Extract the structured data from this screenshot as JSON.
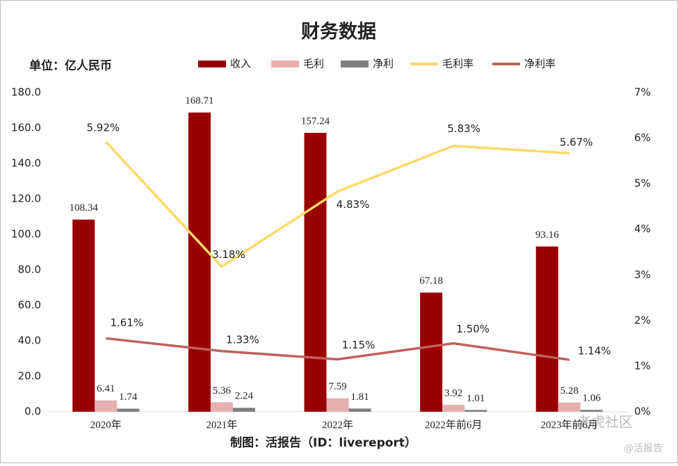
{
  "chart_data": {
    "type": "bar",
    "title": "财务数据",
    "unit_label": "单位：亿人民币",
    "source": "制图：活报告（ID：livereport）",
    "watermark": [
      "老虎社区",
      "@活报告"
    ],
    "categories": [
      "2020年",
      "2021年",
      "2022年",
      "2022年前6月",
      "2023年前6月"
    ],
    "series": [
      {
        "name": "收入",
        "type": "bar",
        "color": "#990000",
        "values": [
          108.34,
          168.71,
          157.24,
          67.18,
          93.16
        ]
      },
      {
        "name": "毛利",
        "type": "bar",
        "color": "#e6b0b0",
        "values": [
          6.41,
          5.36,
          7.59,
          3.92,
          5.28
        ]
      },
      {
        "name": "净利",
        "type": "bar",
        "color": "#7f7f7f",
        "values": [
          1.74,
          2.24,
          1.81,
          1.01,
          1.06
        ]
      },
      {
        "name": "毛利率",
        "type": "line",
        "axis": "y2",
        "color": "#ffd966",
        "values": [
          5.92,
          3.18,
          4.83,
          5.83,
          5.67
        ],
        "value_labels": [
          "5.92%",
          "3.18%",
          "4.83%",
          "5.83%",
          "5.67%"
        ]
      },
      {
        "name": "净利率",
        "type": "line",
        "axis": "y2",
        "color": "#c0605f",
        "values": [
          1.61,
          1.33,
          1.15,
          1.5,
          1.14
        ],
        "value_labels": [
          "1.61%",
          "1.33%",
          "1.15%",
          "1.50%",
          "1.14%"
        ]
      }
    ],
    "ylim": [
      0,
      180
    ],
    "yticks": [
      {
        "value": 0,
        "label": "0.0"
      },
      {
        "value": 20,
        "label": "20.0"
      },
      {
        "value": 40,
        "label": "40.0"
      },
      {
        "value": 60,
        "label": "60.0"
      },
      {
        "value": 80,
        "label": "80.0"
      },
      {
        "value": 100,
        "label": "100.0"
      },
      {
        "value": 120,
        "label": "120.0"
      },
      {
        "value": 140,
        "label": "140.0"
      },
      {
        "value": 160,
        "label": "160.0"
      },
      {
        "value": 180,
        "label": "180.0"
      }
    ],
    "y2lim": [
      0,
      7
    ],
    "y2ticks": [
      {
        "value": 0,
        "label": "0%"
      },
      {
        "value": 1,
        "label": "1%"
      },
      {
        "value": 2,
        "label": "2%"
      },
      {
        "value": 3,
        "label": "3%"
      },
      {
        "value": 4,
        "label": "4%"
      },
      {
        "value": 5,
        "label": "5%"
      },
      {
        "value": 6,
        "label": "6%"
      },
      {
        "value": 7,
        "label": "7%"
      }
    ],
    "grid": false,
    "legend": "top"
  }
}
